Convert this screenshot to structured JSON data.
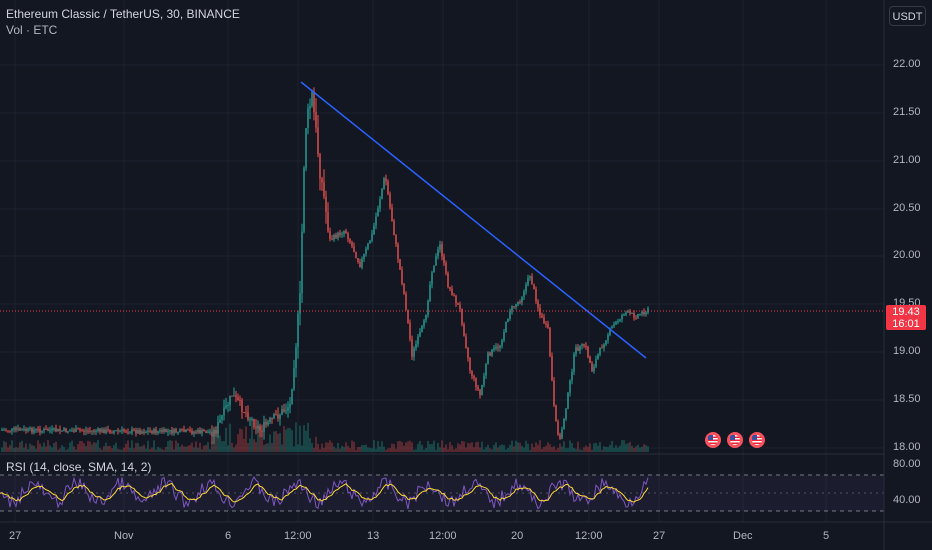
{
  "header": {
    "symbol_line": "Ethereum Classic / TetherUS, 30, BINANCE",
    "volume_line": "Vol · ETC"
  },
  "currency_button": "USDT",
  "price_tag": {
    "price": "19.43",
    "countdown": "16:01"
  },
  "rsi_label": "RSI (14, close, SMA, 14, 2)",
  "y_axis_labels": [
    "22.00",
    "21.50",
    "21.00",
    "20.50",
    "20.00",
    "19.50",
    "19.00",
    "18.50",
    "18.00"
  ],
  "rsi_axis_labels": [
    "80.00",
    "40.00"
  ],
  "x_axis_labels": [
    "27",
    "Nov",
    "6",
    "12:00",
    "13",
    "12:00",
    "20",
    "12:00",
    "27",
    "Dec",
    "5"
  ],
  "event_icons": [
    "us-flag-icon",
    "us-flag-icon",
    "us-flag-icon"
  ],
  "colors": {
    "background": "#131722",
    "up": "#26a69a",
    "down": "#ef5350",
    "trendline": "#2962ff",
    "rsi_line": "#7e57c2",
    "rsi_ma": "#fdd835",
    "price_tag": "#f23645"
  },
  "chart_data": {
    "type": "candlestick",
    "title": "Ethereum Classic / TetherUS, 30, BINANCE",
    "y_range": [
      17.95,
      22.2
    ],
    "last_price": 19.43,
    "key_points": [
      {
        "date": "Nov 6",
        "price": 18.1
      },
      {
        "date": "Nov 9",
        "price": 21.8
      },
      {
        "date": "Nov 13",
        "price": 21.1
      },
      {
        "date": "Nov 16",
        "price": 20.6
      },
      {
        "date": "Nov 18",
        "price": 19.0
      },
      {
        "date": "Nov 20",
        "price": 19.9
      },
      {
        "date": "Nov 22",
        "price": 18.0
      },
      {
        "date": "Nov 24",
        "price": 19.4
      },
      {
        "date": "Nov 26",
        "price": 19.43
      }
    ],
    "trendline": {
      "from": {
        "date": "Nov 9",
        "price": 21.8
      },
      "to": {
        "date": "Nov 26",
        "price": 18.93
      }
    },
    "rsi": {
      "levels": [
        70,
        50,
        30
      ],
      "axis_labels": [
        80,
        40
      ]
    }
  }
}
